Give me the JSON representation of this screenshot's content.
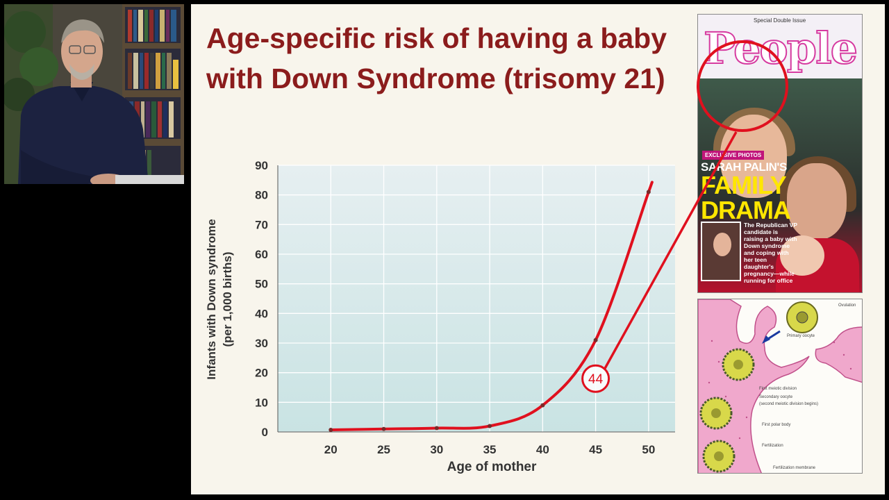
{
  "slide": {
    "title": "Age-specific risk of having a baby with Down Syndrome (trisomy 21)"
  },
  "chart_data": {
    "type": "line",
    "title": "",
    "xlabel": "Age of mother",
    "ylabel_line1": "Infants with Down syndrome",
    "ylabel_line2": "(per 1,000 births)",
    "x": [
      20,
      25,
      30,
      35,
      40,
      45,
      50
    ],
    "x_tick_labels": [
      "20",
      "25",
      "30",
      "35",
      "40",
      "45",
      "50"
    ],
    "y_tick_labels": [
      "0",
      "10",
      "20",
      "30",
      "40",
      "50",
      "60",
      "70",
      "80",
      "90"
    ],
    "ylim": [
      0,
      90
    ],
    "xlim": [
      15,
      52.5
    ],
    "grid": true,
    "series": [
      {
        "values": [
          0.7,
          1.0,
          1.3,
          2.0,
          9.0,
          31.0,
          81.0
        ],
        "color": "#e0101e"
      }
    ],
    "annotation": {
      "label": "44",
      "x": 45,
      "y": 18,
      "color": "#e0101e"
    }
  },
  "magazine": {
    "issue": "Special Double Issue",
    "brand": "People",
    "exclusive": "EXCLUSIVE PHOTOS",
    "headline_1": "SARAH PALIN'S",
    "headline_2": "FAMILY DRAMA",
    "blurb": "The Republican VP candidate is raising a baby with Down syndrome and coping with her teen daughter's pregnancy—while running for office"
  },
  "illustration": {
    "ovulation": "Ovulation",
    "primary_oocyte": "Primary oocyte",
    "first_meiotic_division": "First meiotic division",
    "secondary_oocyte": "Secondary oocyte",
    "second_meiotic_division": "(second meiotic division begins)",
    "first_polar_body": "First polar body",
    "fertilization": "Fertilization",
    "fertilization_membrane": "Fertilization membrane"
  },
  "colors": {
    "title": "#8b1c1c",
    "curve": "#e0101e",
    "plot_bg_top": "#e6eff1",
    "plot_bg_bottom": "#c9e3e3"
  }
}
